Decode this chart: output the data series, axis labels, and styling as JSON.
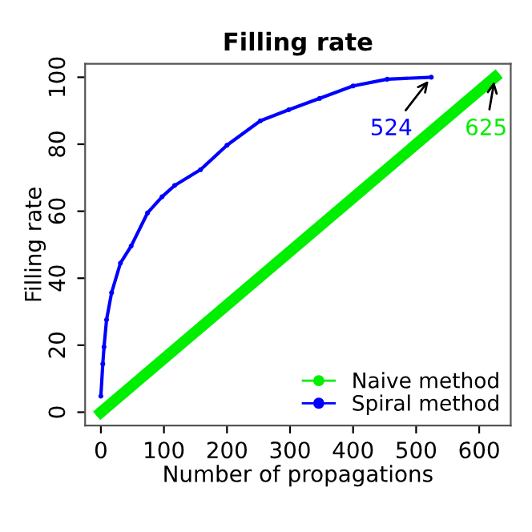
{
  "chart_data": {
    "type": "line",
    "title": "Filling rate",
    "xlabel": "Number of propagations",
    "ylabel": "Filling rate",
    "xlim": [
      -25,
      650
    ],
    "ylim": [
      -4,
      104
    ],
    "xticks": [
      0,
      100,
      200,
      300,
      400,
      500,
      600
    ],
    "yticks": [
      0,
      20,
      40,
      60,
      80,
      100
    ],
    "grid": false,
    "legend": "bottom right",
    "series": [
      {
        "name": "Naive method",
        "color": "#00ee00",
        "x": [
          0,
          625
        ],
        "values": [
          0,
          100
        ],
        "marker": "circle"
      },
      {
        "name": "Spiral method",
        "color": "#0000ff",
        "x": [
          0,
          3,
          5,
          9,
          17,
          31,
          48,
          74,
          97,
          117,
          158,
          200,
          253,
          298,
          347,
          400,
          454,
          524
        ],
        "values": [
          4.8,
          14.4,
          19.5,
          27.6,
          35.7,
          44.5,
          49.6,
          59.5,
          64.3,
          67.7,
          72.4,
          79.7,
          87,
          90.3,
          93.7,
          97.4,
          99.4,
          100
        ],
        "marker": "circle"
      }
    ],
    "annotations": [
      {
        "text": "524",
        "x": 524,
        "y": 100
      },
      {
        "text": "625",
        "x": 625,
        "y": 100
      }
    ]
  }
}
